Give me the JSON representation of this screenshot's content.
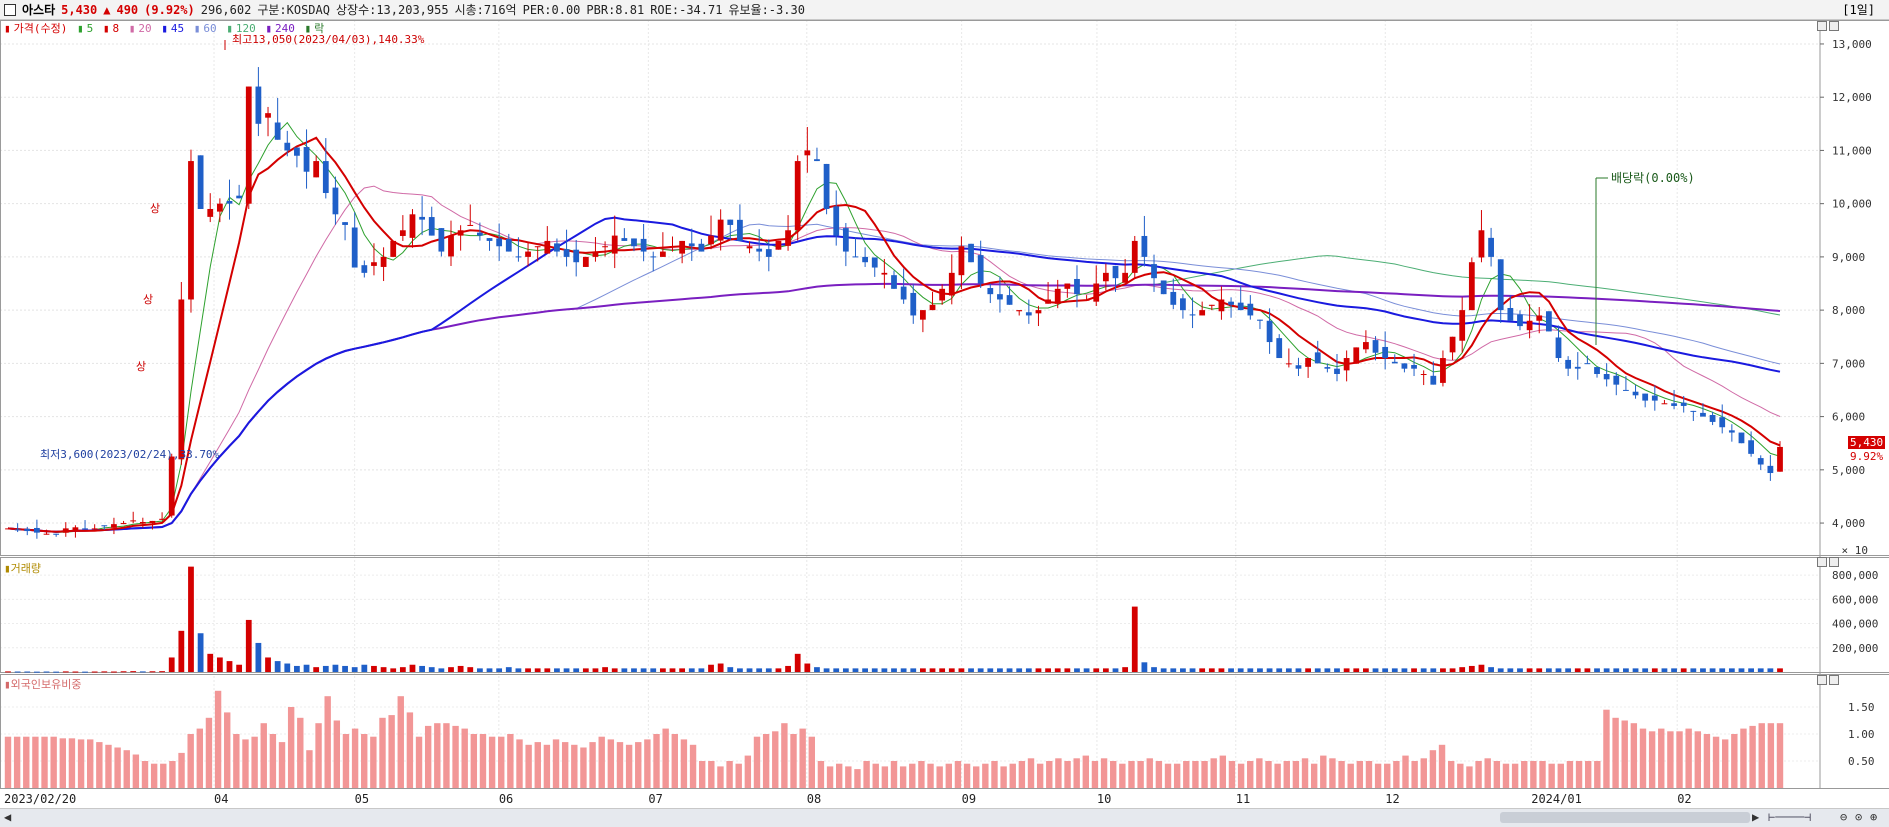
{
  "header": {
    "name": "아스타",
    "price": "5,430",
    "change_arrow": "▲",
    "change": "490",
    "change_pct": "(9.92%)",
    "volume": "296,602",
    "market": "구분:KOSDAQ",
    "listed": "상장수:13,203,955",
    "mcap": "시총:716억",
    "per": "PER:0.00",
    "pbr": "PBR:8.81",
    "roe": "ROE:-34.71",
    "float": "유보율:-3.30",
    "period": "[1일]"
  },
  "legend": {
    "price_label": "가격(수정)",
    "ma5": "5",
    "ma8": "8",
    "ma20": "20",
    "ma45": "45",
    "ma60": "60",
    "ma120": "120",
    "ma240": "240",
    "fall_label": "락"
  },
  "annotations": {
    "high": "최고13,050(2023/04/03),140.33%",
    "low": "최저3,600(2023/02/24),33.70%",
    "dividend": "배당락(0.00%)",
    "limit_up": "상"
  },
  "price_tags": {
    "last": "5,430",
    "pct": "9.92%"
  },
  "volume_pane": {
    "label": "거래량",
    "unit": "× 10"
  },
  "foreign_pane": {
    "label": "외국인보유비중"
  },
  "colors": {
    "up": "#d40000",
    "down": "#1f5fc8",
    "ma5": "#2ea12e",
    "ma8": "#d40000",
    "ma20": "#d06aa6",
    "ma45": "#1a1adf",
    "ma60": "#7a8ed8",
    "ma120": "#4cae74",
    "ma240": "#7a1fc0"
  },
  "chart_data": [
    {
      "type": "candlestick",
      "title": "아스타",
      "y_ticks": [
        "13,000",
        "12,000",
        "11,000",
        "10,000",
        "9,000",
        "8,000",
        "7,000",
        "6,000",
        "5,000",
        "4,000"
      ],
      "ylim": [
        3400,
        13450
      ],
      "x_tick_labels": [
        "2023/02/20",
        "04",
        "05",
        "06",
        "07",
        "08",
        "09",
        "10",
        "11",
        "12",
        "2024/01",
        "02"
      ],
      "close_series": [
        3900,
        3870,
        3850,
        3820,
        3800,
        3780,
        3900,
        3920,
        3880,
        3900,
        3950,
        3980,
        4000,
        4050,
        4020,
        4040,
        4080,
        5250,
        8200,
        10800,
        9900,
        9900,
        10000,
        10000,
        10100,
        12200,
        11500,
        11700,
        11200,
        11000,
        10900,
        10600,
        10800,
        10200,
        9800,
        9600,
        8800,
        8700,
        8900,
        9000,
        9300,
        9500,
        9800,
        9700,
        9400,
        9100,
        9400,
        9500,
        9600,
        9400,
        9300,
        9200,
        9100,
        9000,
        9100,
        9200,
        9300,
        9100,
        9000,
        8900,
        9000,
        9100,
        9200,
        9400,
        9300,
        9200,
        9100,
        9000,
        9100,
        9200,
        9300,
        9200,
        9100,
        9400,
        9700,
        9600,
        9300,
        9200,
        9100,
        9000,
        9300,
        9500,
        10800,
        11000,
        10800,
        9900,
        9400,
        9100,
        9000,
        8900,
        8800,
        8700,
        8400,
        8200,
        7900,
        8000,
        8100,
        8400,
        8700,
        9200,
        8900,
        8500,
        8300,
        8200,
        8100,
        8000,
        7900,
        8000,
        8200,
        8400,
        8500,
        8300,
        8200,
        8500,
        8700,
        8600,
        8700,
        9300,
        9000,
        8600,
        8300,
        8100,
        8000,
        7900,
        8000,
        8100,
        8200,
        8100,
        8000,
        7900,
        7800,
        7400,
        7100,
        7000,
        6900,
        7100,
        7000,
        6900,
        6800,
        7100,
        7300,
        7400,
        7200,
        7100,
        7000,
        6900,
        6900,
        6800,
        6600,
        7100,
        7500,
        8000,
        8900,
        9500,
        9000,
        8000,
        7800,
        7700,
        7800,
        7900,
        7600,
        7100,
        6900,
        6900,
        7000,
        6800,
        6700,
        6600,
        6500,
        6400,
        6300,
        6300,
        6250,
        6200,
        6200,
        6100,
        6000,
        5900,
        5800,
        5700,
        5500,
        5300,
        5100,
        4940,
        5430
      ],
      "volume_values_x10": [
        5000,
        4000,
        4000,
        3000,
        4000,
        3000,
        5000,
        4000,
        3000,
        4000,
        5000,
        4000,
        6000,
        7000,
        5000,
        6000,
        7000,
        120000,
        340000,
        870000,
        320000,
        150000,
        120000,
        90000,
        60000,
        430000,
        240000,
        120000,
        90000,
        70000,
        50000,
        60000,
        40000,
        50000,
        60000,
        50000,
        40000,
        60000,
        50000,
        40000,
        30000,
        40000,
        60000,
        50000,
        40000,
        30000,
        40000,
        50000,
        40000,
        30000,
        30000,
        30000,
        40000,
        30000,
        30000,
        30000,
        30000,
        30000,
        30000,
        30000,
        30000,
        30000,
        40000,
        30000,
        30000,
        30000,
        30000,
        30000,
        30000,
        30000,
        30000,
        30000,
        30000,
        60000,
        70000,
        40000,
        30000,
        30000,
        30000,
        30000,
        30000,
        50000,
        150000,
        70000,
        40000,
        30000,
        30000,
        30000,
        30000,
        30000,
        30000,
        30000,
        30000,
        30000,
        30000,
        30000,
        30000,
        30000,
        30000,
        30000,
        30000,
        30000,
        30000,
        30000,
        30000,
        30000,
        30000,
        30000,
        30000,
        30000,
        30000,
        30000,
        30000,
        30000,
        30000,
        30000,
        40000,
        540000,
        80000,
        40000,
        30000,
        30000,
        30000,
        30000,
        30000,
        30000,
        30000,
        30000,
        30000,
        30000,
        30000,
        30000,
        30000,
        30000,
        30000,
        30000,
        30000,
        30000,
        30000,
        30000,
        30000,
        30000,
        30000,
        30000,
        30000,
        30000,
        30000,
        30000,
        30000,
        30000,
        30000,
        40000,
        50000,
        60000,
        40000,
        30000,
        30000,
        30000,
        30000,
        30000,
        30000,
        30000,
        30000,
        30000,
        30000,
        30000,
        30000,
        30000,
        30000,
        30000,
        30000,
        30000,
        30000,
        30000,
        30000,
        30000,
        30000,
        30000,
        30000,
        30000,
        30000,
        30000,
        30000,
        30000,
        30000,
        30000,
        30000
      ],
      "volume_ticks": [
        "800,000",
        "600,000",
        "400,000",
        "200,000"
      ],
      "foreign_ticks": [
        "1.50",
        "1.00",
        "0.50"
      ],
      "foreign_ratio_values": [
        0.95,
        0.95,
        0.95,
        0.95,
        0.95,
        0.95,
        0.92,
        0.92,
        0.9,
        0.9,
        0.85,
        0.8,
        0.75,
        0.7,
        0.62,
        0.5,
        0.45,
        0.45,
        0.5,
        0.65,
        1.0,
        1.1,
        1.3,
        1.8,
        1.4,
        1.0,
        0.9,
        0.95,
        1.2,
        1.0,
        0.85,
        1.5,
        1.3,
        0.7,
        1.2,
        1.7,
        1.25,
        1.0,
        1.1,
        1.0,
        0.95,
        1.3,
        1.35,
        1.7,
        1.4,
        0.95,
        1.15,
        1.2,
        1.2,
        1.15,
        1.1,
        1.0,
        1.0,
        0.95,
        0.95,
        1.0,
        0.9,
        0.8,
        0.85,
        0.8,
        0.9,
        0.85,
        0.8,
        0.75,
        0.85,
        0.95,
        0.9,
        0.85,
        0.8,
        0.85,
        0.9,
        1.0,
        1.1,
        1.0,
        0.9,
        0.8,
        0.5,
        0.5,
        0.4,
        0.5,
        0.45,
        0.6,
        0.95,
        1.0,
        1.05,
        1.2,
        1.0,
        1.1,
        0.95,
        0.5,
        0.4,
        0.45,
        0.4,
        0.35,
        0.5,
        0.45,
        0.4,
        0.5,
        0.4,
        0.45,
        0.5,
        0.45,
        0.4,
        0.45,
        0.5,
        0.45,
        0.4,
        0.45,
        0.5,
        0.4,
        0.45,
        0.5,
        0.55,
        0.45,
        0.5,
        0.55,
        0.5,
        0.55,
        0.6,
        0.5,
        0.55,
        0.5,
        0.45,
        0.5,
        0.5,
        0.55,
        0.5,
        0.45,
        0.45,
        0.5,
        0.5,
        0.5,
        0.55,
        0.6,
        0.5,
        0.45,
        0.5,
        0.55,
        0.5,
        0.45,
        0.5,
        0.5,
        0.55,
        0.45,
        0.6,
        0.55,
        0.5,
        0.45,
        0.5,
        0.5,
        0.45,
        0.45,
        0.5,
        0.6,
        0.5,
        0.55,
        0.7,
        0.8,
        0.5,
        0.45,
        0.4,
        0.5,
        0.55,
        0.5,
        0.45,
        0.45,
        0.5,
        0.5,
        0.5,
        0.45,
        0.45,
        0.5,
        0.5,
        0.5,
        0.5,
        1.45,
        1.3,
        1.25,
        1.2,
        1.1,
        1.05,
        1.1,
        1.05,
        1.05,
        1.1,
        1.05,
        1.0,
        0.95,
        0.9,
        1.0,
        1.1,
        1.15,
        1.2,
        1.2,
        1.2
      ]
    }
  ]
}
